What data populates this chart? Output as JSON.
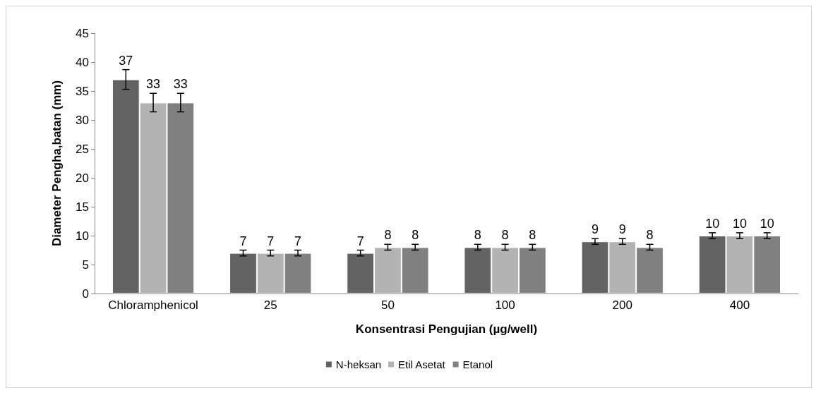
{
  "chart_data": {
    "type": "bar",
    "xlabel": "Konsentrasi Pengujian (µg/well)",
    "ylabel": "Diameter Pengha,batan (mm)",
    "categories": [
      "Chloramphenicol",
      "25",
      "50",
      "100",
      "200",
      "400"
    ],
    "series": [
      {
        "name": "N-heksan",
        "color": "#636363",
        "values": [
          37,
          7,
          7,
          8,
          9,
          10
        ],
        "errors": [
          1.7,
          0.5,
          0.5,
          0.5,
          0.5,
          0.5
        ]
      },
      {
        "name": "Etil Asetat",
        "color": "#b3b3b3",
        "values": [
          33,
          7,
          8,
          8,
          9,
          10
        ],
        "errors": [
          1.6,
          0.5,
          0.5,
          0.5,
          0.5,
          0.5
        ]
      },
      {
        "name": "Etanol",
        "color": "#808080",
        "values": [
          33,
          7,
          8,
          8,
          8,
          10
        ],
        "errors": [
          1.6,
          0.5,
          0.5,
          0.5,
          0.5,
          0.5
        ]
      }
    ],
    "ylim": [
      0,
      45
    ],
    "yticks": [
      0,
      5,
      10,
      15,
      20,
      25,
      30,
      35,
      40,
      45
    ],
    "grid": false,
    "legend": "bottom",
    "data_labels": true
  }
}
